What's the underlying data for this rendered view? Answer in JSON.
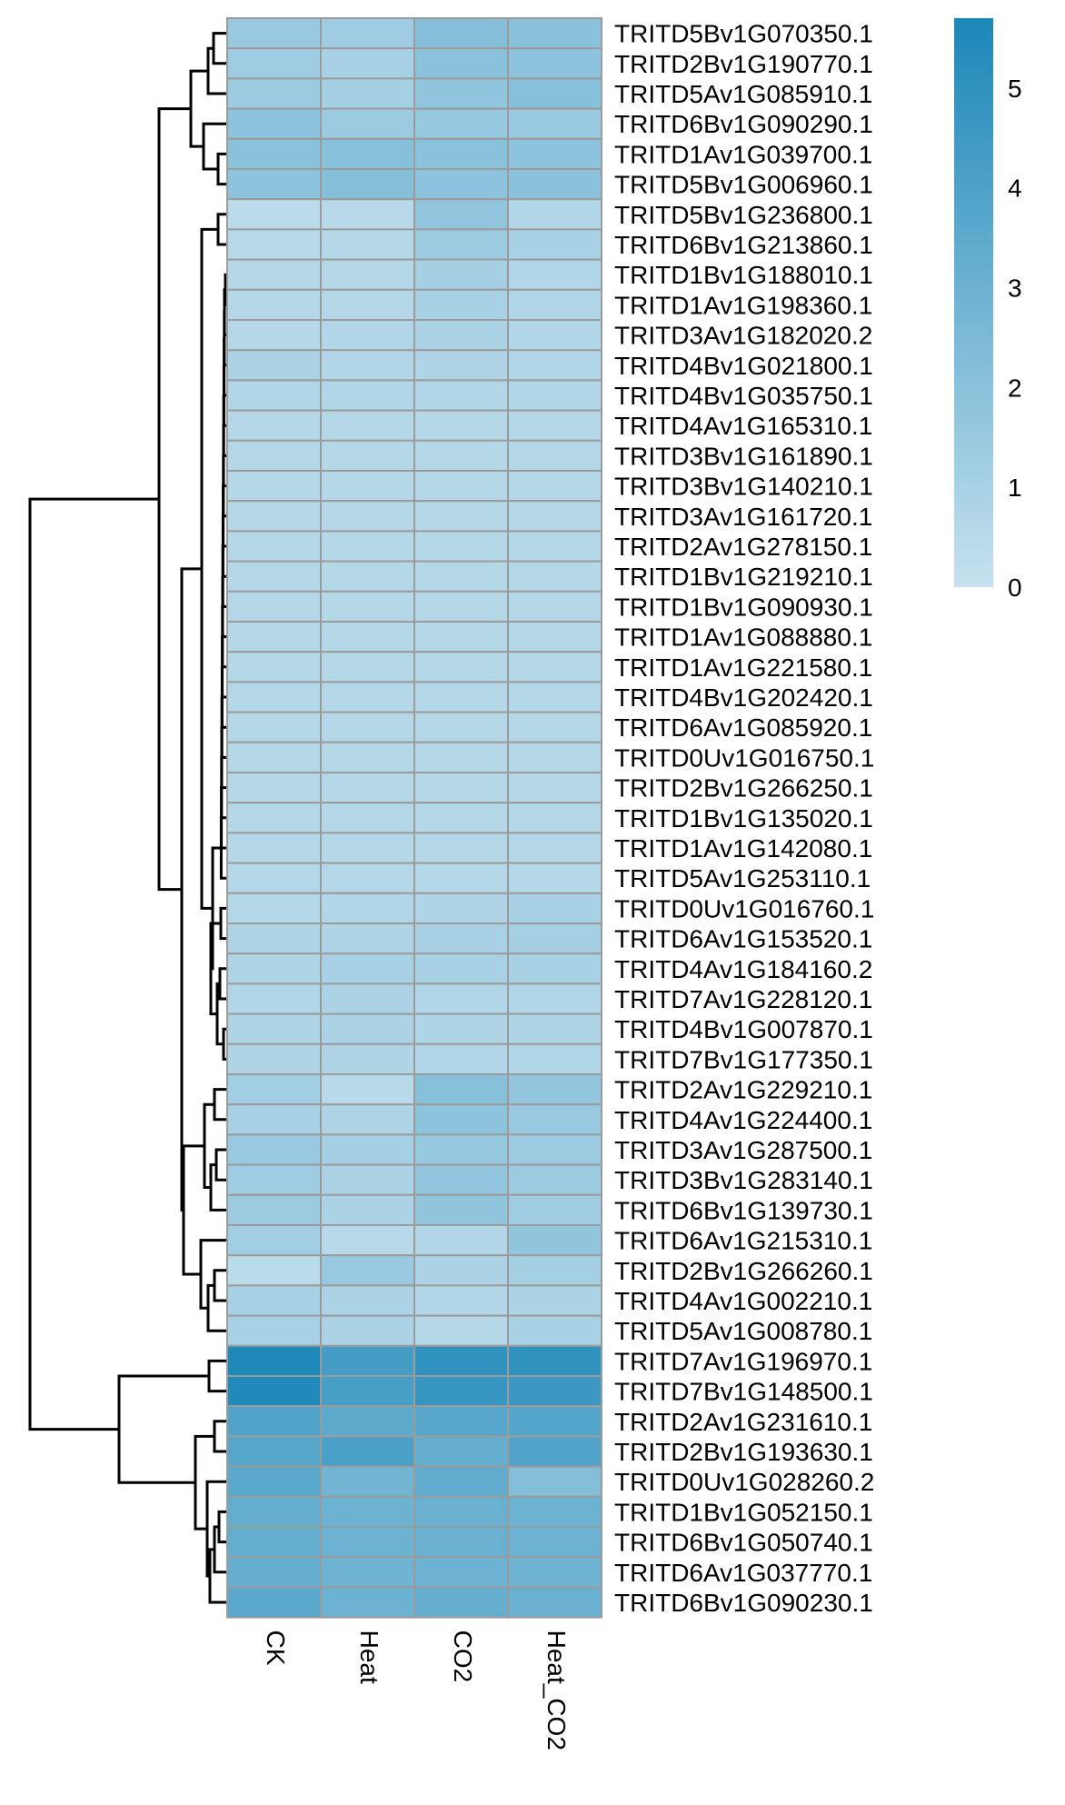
{
  "chart_data": {
    "type": "heatmap",
    "columns": [
      "CK",
      "Heat",
      "CO2",
      "Heat_CO2"
    ],
    "rows": [
      "TRITD5Bv1G070350.1",
      "TRITD2Bv1G190770.1",
      "TRITD5Av1G085910.1",
      "TRITD6Bv1G090290.1",
      "TRITD1Av1G039700.1",
      "TRITD5Bv1G006960.1",
      "TRITD5Bv1G236800.1",
      "TRITD6Bv1G213860.1",
      "TRITD1Bv1G188010.1",
      "TRITD1Av1G198360.1",
      "TRITD3Av1G182020.2",
      "TRITD4Bv1G021800.1",
      "TRITD4Bv1G035750.1",
      "TRITD4Av1G165310.1",
      "TRITD3Bv1G161890.1",
      "TRITD3Bv1G140210.1",
      "TRITD3Av1G161720.1",
      "TRITD2Av1G278150.1",
      "TRITD1Bv1G219210.1",
      "TRITD1Bv1G090930.1",
      "TRITD1Av1G088880.1",
      "TRITD1Av1G221580.1",
      "TRITD4Bv1G202420.1",
      "TRITD6Av1G085920.1",
      "TRITD0Uv1G016750.1",
      "TRITD2Bv1G266250.1",
      "TRITD1Bv1G135020.1",
      "TRITD1Av1G142080.1",
      "TRITD5Av1G253110.1",
      "TRITD0Uv1G016760.1",
      "TRITD6Av1G153520.1",
      "TRITD4Av1G184160.2",
      "TRITD7Av1G228120.1",
      "TRITD4Bv1G007870.1",
      "TRITD7Bv1G177350.1",
      "TRITD2Av1G229210.1",
      "TRITD4Av1G224400.1",
      "TRITD3Av1G287500.1",
      "TRITD3Bv1G283140.1",
      "TRITD6Bv1G139730.1",
      "TRITD6Av1G215310.1",
      "TRITD2Bv1G266260.1",
      "TRITD4Av1G002210.1",
      "TRITD5Av1G008780.1",
      "TRITD7Av1G196970.1",
      "TRITD7Bv1G148500.1",
      "TRITD2Av1G231610.1",
      "TRITD2Bv1G193630.1",
      "TRITD0Uv1G028260.2",
      "TRITD1Bv1G052150.1",
      "TRITD6Bv1G050740.1",
      "TRITD6Av1G037770.1",
      "TRITD6Bv1G090230.1"
    ],
    "values": [
      [
        1.5,
        1.3,
        2.2,
        2.0
      ],
      [
        1.3,
        1.0,
        2.0,
        1.9
      ],
      [
        1.4,
        1.1,
        1.8,
        2.1
      ],
      [
        1.9,
        1.4,
        1.6,
        1.5
      ],
      [
        2.0,
        2.1,
        2.0,
        1.9
      ],
      [
        1.9,
        2.2,
        1.9,
        2.0
      ],
      [
        0.4,
        0.5,
        1.7,
        0.7
      ],
      [
        0.5,
        0.6,
        1.4,
        1.0
      ],
      [
        0.6,
        0.6,
        1.1,
        0.7
      ],
      [
        0.6,
        0.6,
        1.0,
        0.7
      ],
      [
        0.6,
        0.7,
        0.9,
        0.7
      ],
      [
        0.9,
        0.7,
        0.8,
        0.7
      ],
      [
        0.7,
        0.7,
        0.7,
        0.7
      ],
      [
        0.6,
        0.6,
        0.6,
        0.6
      ],
      [
        0.6,
        0.6,
        0.6,
        0.6
      ],
      [
        0.6,
        0.6,
        0.6,
        0.6
      ],
      [
        0.6,
        0.6,
        0.6,
        0.6
      ],
      [
        0.6,
        0.6,
        0.6,
        0.6
      ],
      [
        0.6,
        0.6,
        0.6,
        0.6
      ],
      [
        0.6,
        0.6,
        0.6,
        0.6
      ],
      [
        0.6,
        0.6,
        0.6,
        0.6
      ],
      [
        0.6,
        0.6,
        0.6,
        0.6
      ],
      [
        0.6,
        0.6,
        0.6,
        0.6
      ],
      [
        0.6,
        0.6,
        0.6,
        0.6
      ],
      [
        0.6,
        0.6,
        0.6,
        0.6
      ],
      [
        0.6,
        0.6,
        0.6,
        0.6
      ],
      [
        0.6,
        0.6,
        0.6,
        0.6
      ],
      [
        0.6,
        0.6,
        0.6,
        0.6
      ],
      [
        0.6,
        0.6,
        0.6,
        0.6
      ],
      [
        0.6,
        0.7,
        0.8,
        1.0
      ],
      [
        0.8,
        0.8,
        1.0,
        1.1
      ],
      [
        0.8,
        1.0,
        1.0,
        1.0
      ],
      [
        0.7,
        0.9,
        0.7,
        0.7
      ],
      [
        0.8,
        0.9,
        0.8,
        0.8
      ],
      [
        0.8,
        0.8,
        0.7,
        0.7
      ],
      [
        1.2,
        0.5,
        2.1,
        1.7
      ],
      [
        1.0,
        0.8,
        1.9,
        1.5
      ],
      [
        1.5,
        1.1,
        1.6,
        1.4
      ],
      [
        1.3,
        0.9,
        1.7,
        1.4
      ],
      [
        1.4,
        0.9,
        1.8,
        1.3
      ],
      [
        1.2,
        0.5,
        0.7,
        1.8
      ],
      [
        0.4,
        1.5,
        0.9,
        1.1
      ],
      [
        1.0,
        0.9,
        0.7,
        0.9
      ],
      [
        1.0,
        0.9,
        0.6,
        1.0
      ],
      [
        5.6,
        4.3,
        5.0,
        5.0
      ],
      [
        5.5,
        4.2,
        4.8,
        4.6
      ],
      [
        3.9,
        3.5,
        3.7,
        3.8
      ],
      [
        3.7,
        4.1,
        3.2,
        3.9
      ],
      [
        3.6,
        2.8,
        3.4,
        2.2
      ],
      [
        3.3,
        3.0,
        3.1,
        3.0
      ],
      [
        3.3,
        3.0,
        3.1,
        3.0
      ],
      [
        3.2,
        2.9,
        3.0,
        2.9
      ],
      [
        3.6,
        3.0,
        3.2,
        3.1
      ]
    ],
    "colorbar": {
      "ticks": [
        0,
        1,
        2,
        3,
        4,
        5
      ],
      "range": [
        0,
        5.7
      ],
      "low_color": "#c6e1ee",
      "high_color": "#1b87b8"
    },
    "cell_border_color": "#9b9b9b",
    "row_dendrogram": true
  }
}
